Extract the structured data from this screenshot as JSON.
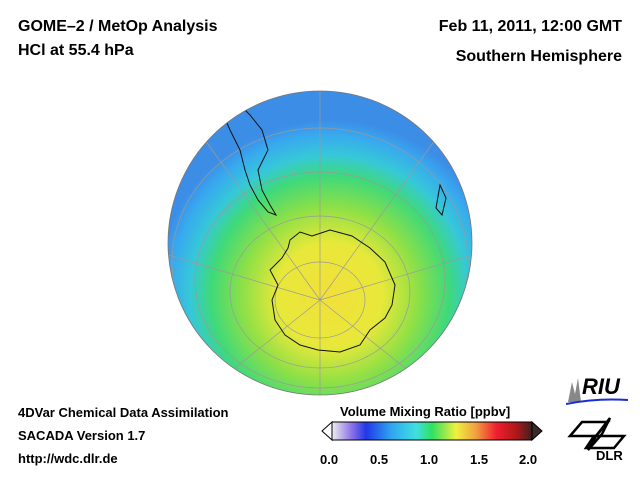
{
  "header": {
    "title_line1": "GOME–2 / MetOp Analysis",
    "title_line2": "HCl at 55.4 hPa",
    "date": "Feb 11, 2011, 12:00 GMT",
    "region": "Southern Hemisphere"
  },
  "footer": {
    "line1": "4DVar Chemical Data Assimilation",
    "line2": "SACADA Version 1.7",
    "url": "http://wdc.dlr.de"
  },
  "colorbar": {
    "title": "Volume Mixing Ratio [ppbv]",
    "ticks": [
      "0.0",
      "0.5",
      "1.0",
      "1.5",
      "2.0"
    ],
    "range": [
      0.0,
      2.0
    ]
  },
  "logos": {
    "riu": "RIU",
    "dlr": "DLR"
  }
}
